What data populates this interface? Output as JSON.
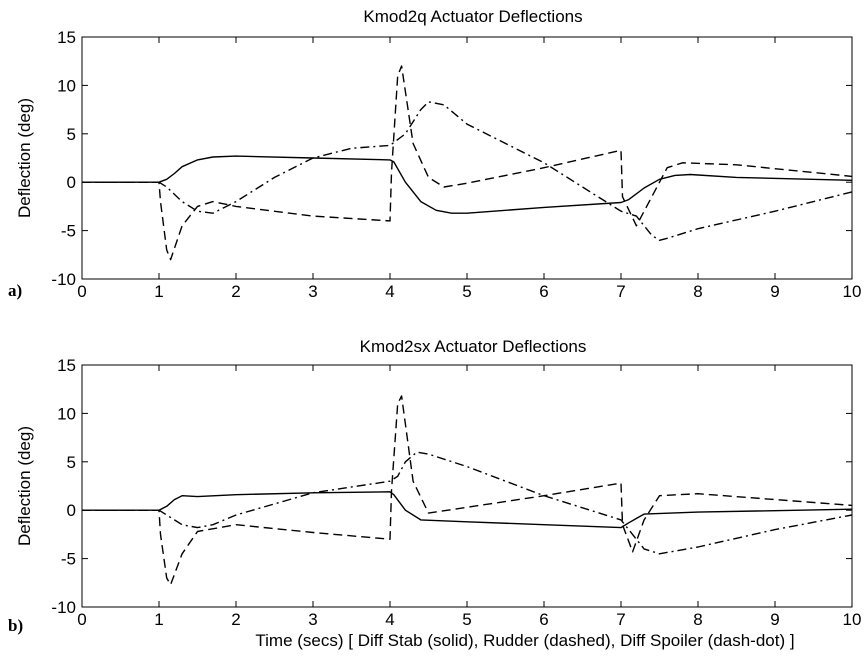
{
  "figure": {
    "xlabel": "Time (secs)  [ Diff Stab (solid), Rudder (dashed), Diff Spoiler (dash-dot) ]"
  },
  "chart_data": [
    {
      "type": "line",
      "panel_label": "a)",
      "title": "Kmod2q Actuator Deflections",
      "ylabel": "Deflection (deg)",
      "xlabel": "",
      "xlim": [
        0,
        10
      ],
      "ylim": [
        -10,
        15
      ],
      "xticks": [
        "0",
        "1",
        "2",
        "3",
        "4",
        "5",
        "6",
        "7",
        "8",
        "9",
        "10"
      ],
      "yticks": [
        "-10",
        "-5",
        "0",
        "5",
        "10",
        "15"
      ],
      "grid": false,
      "series": [
        {
          "style": "solid",
          "x": [
            0,
            1.0,
            1.1,
            1.2,
            1.3,
            1.5,
            1.7,
            2.0,
            3.0,
            4.0,
            4.05,
            4.2,
            4.4,
            4.6,
            4.8,
            5.0,
            6.0,
            7.0,
            7.1,
            7.3,
            7.5,
            7.7,
            7.9,
            8.5,
            10.0
          ],
          "y": [
            0,
            0,
            0.3,
            0.9,
            1.6,
            2.3,
            2.6,
            2.7,
            2.5,
            2.3,
            2.1,
            0.0,
            -2.0,
            -2.9,
            -3.2,
            -3.2,
            -2.6,
            -2.1,
            -1.8,
            -0.6,
            0.3,
            0.7,
            0.8,
            0.5,
            0.2
          ]
        },
        {
          "style": "dashed",
          "x": [
            0,
            1.0,
            1.02,
            1.1,
            1.15,
            1.3,
            1.5,
            1.7,
            2.0,
            3.0,
            4.0,
            4.02,
            4.1,
            4.15,
            4.3,
            4.5,
            4.7,
            5.0,
            6.0,
            7.0,
            7.02,
            7.2,
            7.4,
            7.6,
            7.8,
            8.5,
            10.0
          ],
          "y": [
            0,
            0,
            -2.0,
            -7.0,
            -8.0,
            -4.5,
            -2.5,
            -2.0,
            -2.5,
            -3.5,
            -4.0,
            1.0,
            11.0,
            12.0,
            4.0,
            0.5,
            -0.5,
            -0.1,
            1.5,
            3.3,
            -1.5,
            -4.5,
            -1.5,
            1.5,
            2.0,
            1.8,
            0.6
          ]
        },
        {
          "style": "dash-dot",
          "x": [
            0,
            1.0,
            1.1,
            1.3,
            1.5,
            1.7,
            2.0,
            2.5,
            3.0,
            3.5,
            4.0,
            4.2,
            4.4,
            4.5,
            4.7,
            5.0,
            6.0,
            6.5,
            7.0,
            7.2,
            7.4,
            7.5,
            7.6,
            8.0,
            9.0,
            10.0
          ],
          "y": [
            0,
            0,
            -0.5,
            -2.0,
            -3.0,
            -3.2,
            -2.0,
            0.5,
            2.5,
            3.5,
            3.8,
            5.0,
            7.5,
            8.3,
            8.0,
            6.0,
            2.0,
            -0.5,
            -3.0,
            -3.5,
            -5.5,
            -6.0,
            -5.8,
            -4.8,
            -3.0,
            -1.0
          ]
        }
      ]
    },
    {
      "type": "line",
      "panel_label": "b)",
      "title": "Kmod2sx Actuator Deflections",
      "ylabel": "Deflection (deg)",
      "xlabel": "Time (secs)  [ Diff Stab (solid), Rudder (dashed), Diff Spoiler (dash-dot) ]",
      "xlim": [
        0,
        10
      ],
      "ylim": [
        -10,
        15
      ],
      "xticks": [
        "0",
        "1",
        "2",
        "3",
        "4",
        "5",
        "6",
        "7",
        "8",
        "9",
        "10"
      ],
      "yticks": [
        "-10",
        "-5",
        "0",
        "5",
        "10",
        "15"
      ],
      "grid": false,
      "series": [
        {
          "style": "solid",
          "x": [
            0,
            1.0,
            1.1,
            1.2,
            1.3,
            1.5,
            2.0,
            3.0,
            4.0,
            4.05,
            4.2,
            4.4,
            5.0,
            6.0,
            7.0,
            7.1,
            7.3,
            8.0,
            10.0
          ],
          "y": [
            0,
            0,
            0.4,
            1.1,
            1.5,
            1.4,
            1.6,
            1.8,
            1.9,
            1.6,
            0.0,
            -1.0,
            -1.2,
            -1.5,
            -1.8,
            -1.3,
            -0.4,
            -0.2,
            0.1
          ]
        },
        {
          "style": "dashed",
          "x": [
            0,
            1.0,
            1.02,
            1.1,
            1.15,
            1.3,
            1.5,
            2.0,
            3.0,
            4.0,
            4.02,
            4.1,
            4.15,
            4.3,
            4.5,
            5.0,
            6.0,
            7.0,
            7.02,
            7.15,
            7.3,
            7.5,
            8.0,
            10.0
          ],
          "y": [
            0,
            0,
            -2.5,
            -7.0,
            -7.7,
            -4.5,
            -2.2,
            -1.5,
            -2.3,
            -3.0,
            2.0,
            11.0,
            11.8,
            3.0,
            -0.3,
            0.3,
            1.5,
            2.8,
            -1.5,
            -4.3,
            -1.0,
            1.5,
            1.7,
            0.5
          ]
        },
        {
          "style": "dash-dot",
          "x": [
            0,
            1.0,
            1.1,
            1.3,
            1.5,
            1.7,
            2.0,
            3.0,
            4.0,
            4.1,
            4.2,
            4.35,
            4.5,
            5.0,
            6.0,
            7.0,
            7.1,
            7.3,
            7.5,
            8.0,
            9.0,
            10.0
          ],
          "y": [
            0,
            0,
            -0.5,
            -1.5,
            -1.8,
            -1.5,
            -0.5,
            1.8,
            3.0,
            3.5,
            5.0,
            6.0,
            5.8,
            4.5,
            1.5,
            -1.0,
            -2.0,
            -4.0,
            -4.5,
            -3.8,
            -2.0,
            -0.5
          ]
        }
      ]
    }
  ]
}
